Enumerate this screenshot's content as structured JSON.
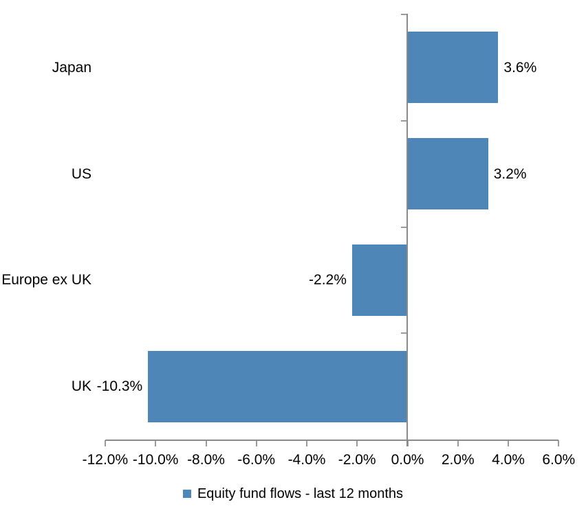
{
  "chart_data": {
    "type": "bar",
    "orientation": "horizontal",
    "title": "",
    "legend": "Equity fund flows - last 12 months",
    "legend_position": "bottom",
    "grid": false,
    "categories": [
      "Japan",
      "US",
      "Europe ex UK",
      "UK"
    ],
    "values": [
      3.6,
      3.2,
      -2.2,
      -10.3
    ],
    "value_labels": [
      "3.6%",
      "3.2%",
      "-2.2%",
      "-10.3%"
    ],
    "x_axis": {
      "min": -12,
      "max": 6,
      "step": 2,
      "tick_labels": [
        "-12.0%",
        "-10.0%",
        "-8.0%",
        "-6.0%",
        "-4.0%",
        "-2.0%",
        "0.0%",
        "2.0%",
        "4.0%",
        "6.0%"
      ]
    },
    "colors": {
      "bar": "#4e86b8",
      "axis_line": "#8a8a8a",
      "tick": "#999999",
      "text": "#000000",
      "background": "#ffffff"
    }
  }
}
